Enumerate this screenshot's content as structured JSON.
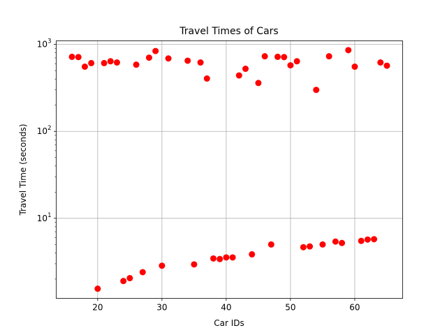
{
  "chart_data": {
    "type": "scatter",
    "title": "Travel Times of Cars",
    "xlabel": "Car IDs",
    "ylabel": "Travel Time (seconds)",
    "xlim": [
      13.55,
      67.45
    ],
    "ylim": [
      1.2,
      1100
    ],
    "yscale": "log",
    "grid": true,
    "marker_color": "#ff0000",
    "x_ticks": [
      {
        "value": 20,
        "label": "20"
      },
      {
        "value": 30,
        "label": "30"
      },
      {
        "value": 40,
        "label": "40"
      },
      {
        "value": 50,
        "label": "50"
      },
      {
        "value": 60,
        "label": "60"
      }
    ],
    "y_ticks": [
      {
        "value": 10,
        "base": "10",
        "exp": "1"
      },
      {
        "value": 100,
        "base": "10",
        "exp": "2"
      },
      {
        "value": 1000,
        "base": "10",
        "exp": "3"
      }
    ],
    "points": [
      {
        "x": 16,
        "y": 720
      },
      {
        "x": 17,
        "y": 715
      },
      {
        "x": 18,
        "y": 555
      },
      {
        "x": 19,
        "y": 610
      },
      {
        "x": 21,
        "y": 610
      },
      {
        "x": 22,
        "y": 640
      },
      {
        "x": 23,
        "y": 620
      },
      {
        "x": 26,
        "y": 585
      },
      {
        "x": 28,
        "y": 705
      },
      {
        "x": 29,
        "y": 840
      },
      {
        "x": 31,
        "y": 690
      },
      {
        "x": 34,
        "y": 650
      },
      {
        "x": 36,
        "y": 620
      },
      {
        "x": 37,
        "y": 405
      },
      {
        "x": 42,
        "y": 440
      },
      {
        "x": 43,
        "y": 525
      },
      {
        "x": 45,
        "y": 360
      },
      {
        "x": 46,
        "y": 730
      },
      {
        "x": 48,
        "y": 720
      },
      {
        "x": 49,
        "y": 715
      },
      {
        "x": 50,
        "y": 575
      },
      {
        "x": 51,
        "y": 640
      },
      {
        "x": 54,
        "y": 300
      },
      {
        "x": 56,
        "y": 730
      },
      {
        "x": 59,
        "y": 860
      },
      {
        "x": 60,
        "y": 555
      },
      {
        "x": 64,
        "y": 620
      },
      {
        "x": 65,
        "y": 570
      },
      {
        "x": 20,
        "y": 1.55
      },
      {
        "x": 24,
        "y": 1.9
      },
      {
        "x": 25,
        "y": 2.05
      },
      {
        "x": 27,
        "y": 2.4
      },
      {
        "x": 30,
        "y": 2.85
      },
      {
        "x": 35,
        "y": 2.95
      },
      {
        "x": 38,
        "y": 3.45
      },
      {
        "x": 39,
        "y": 3.4
      },
      {
        "x": 40,
        "y": 3.55
      },
      {
        "x": 41,
        "y": 3.55
      },
      {
        "x": 44,
        "y": 3.85
      },
      {
        "x": 47,
        "y": 5.0
      },
      {
        "x": 52,
        "y": 4.65
      },
      {
        "x": 53,
        "y": 4.75
      },
      {
        "x": 55,
        "y": 5.0
      },
      {
        "x": 57,
        "y": 5.4
      },
      {
        "x": 58,
        "y": 5.2
      },
      {
        "x": 61,
        "y": 5.5
      },
      {
        "x": 62,
        "y": 5.7
      },
      {
        "x": 63,
        "y": 5.75
      }
    ]
  }
}
